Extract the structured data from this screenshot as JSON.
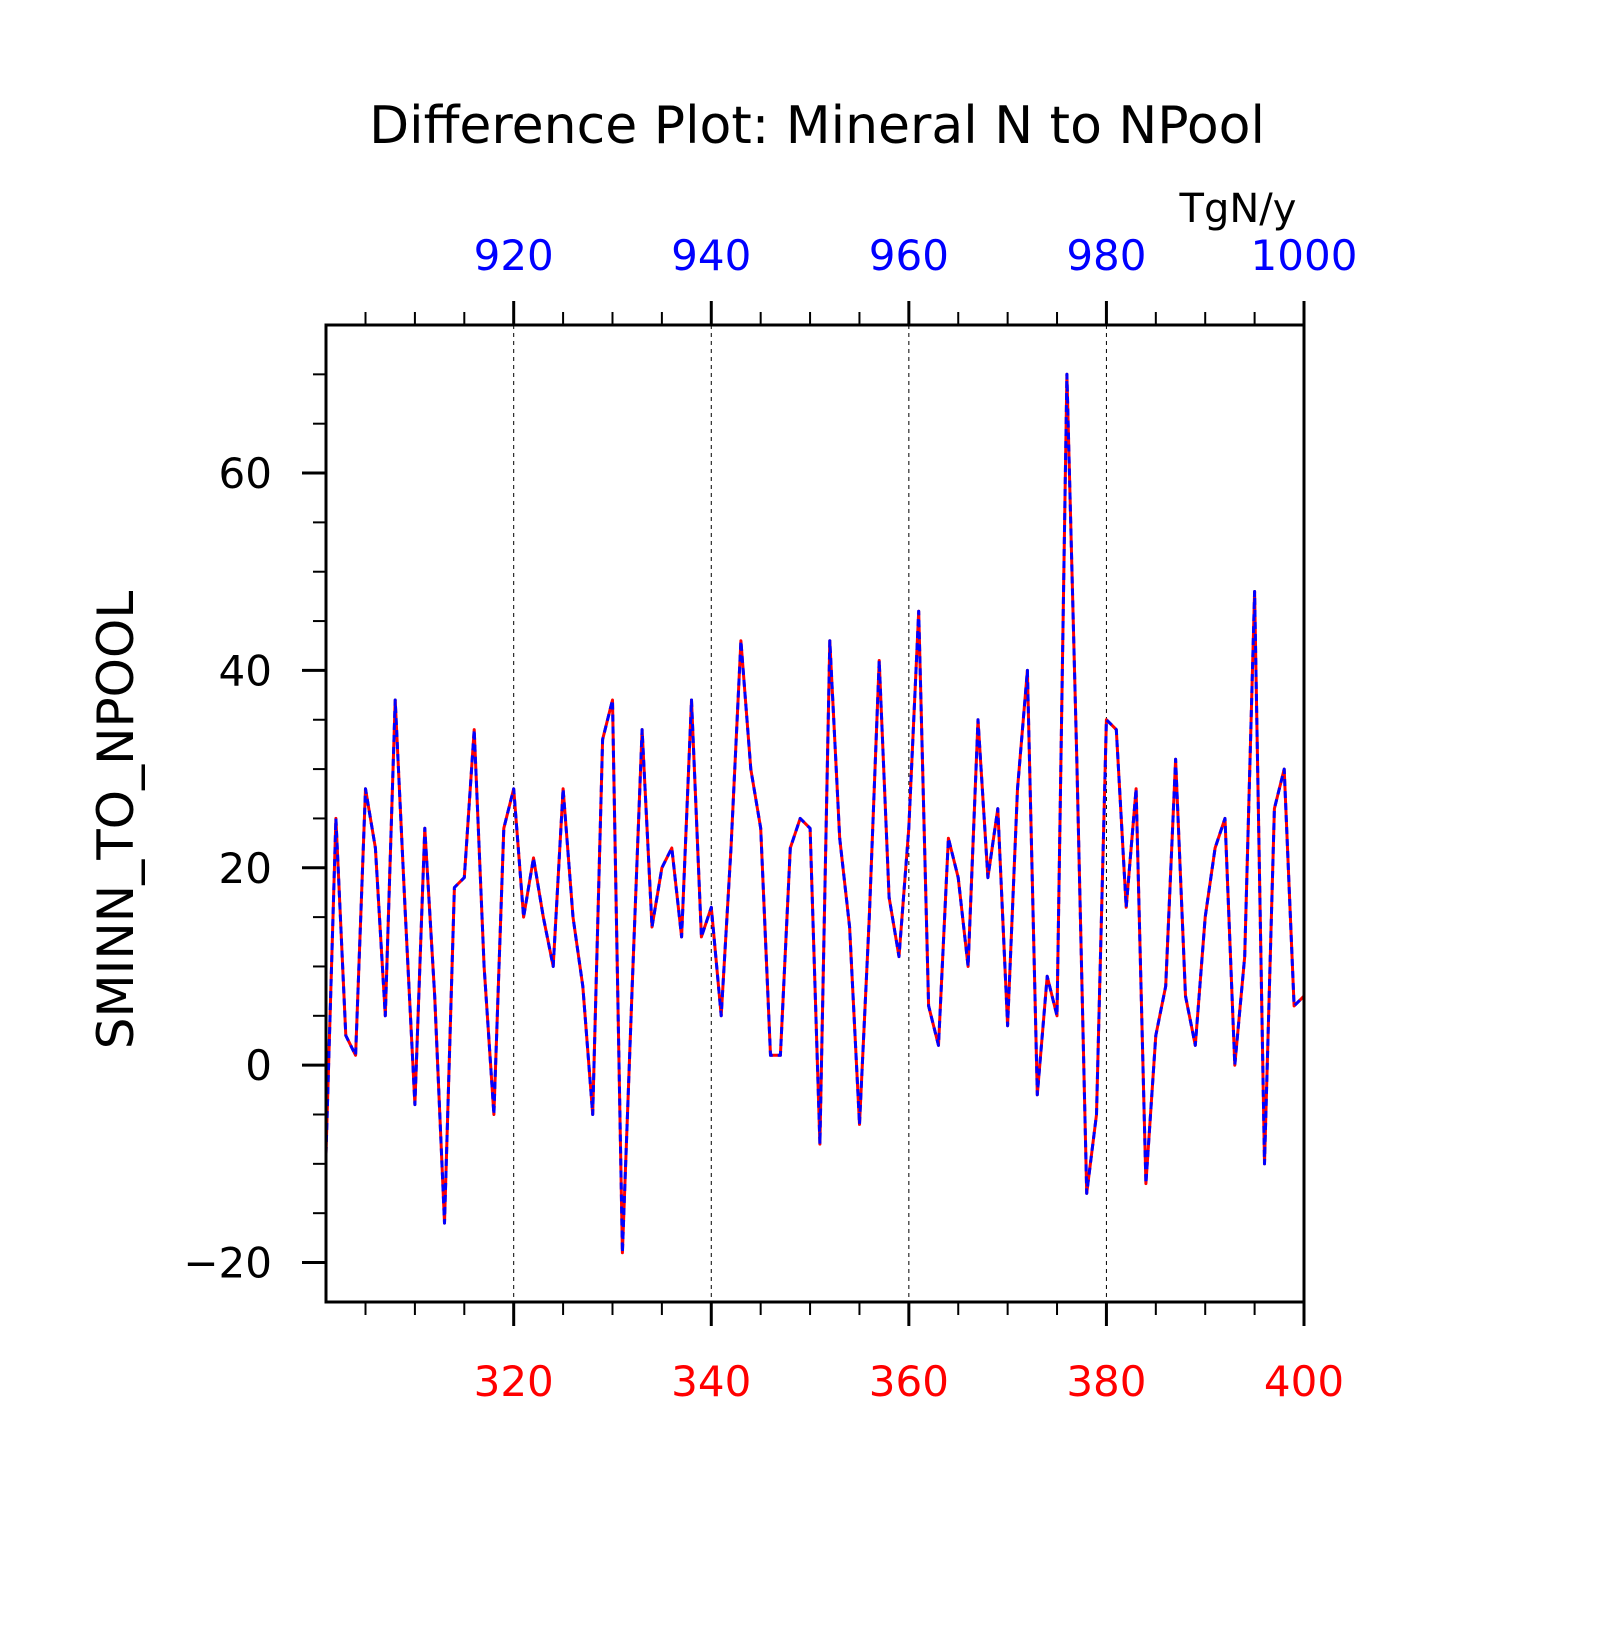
{
  "chart_data": {
    "type": "line",
    "title": "Difference Plot: Mineral N to NPool",
    "units": "TgN/y",
    "ylabel": "SMINN_TO_NPOOL",
    "xlim_bottom": [
      301,
      400
    ],
    "xlim_top": [
      901,
      1000
    ],
    "ylim": [
      -24,
      75
    ],
    "x_ticks_bottom": [
      "320",
      "340",
      "360",
      "380",
      "400"
    ],
    "x_ticks_top": [
      "920",
      "940",
      "960",
      "980",
      "1000"
    ],
    "y_ticks": [
      "-20",
      "0",
      "20",
      "40",
      "60"
    ],
    "grid": "vertical dashed at labeled x ticks",
    "colors": {
      "bottom_axis": "#ff0000",
      "top_axis": "#0000ff",
      "series_a": "#ff0000",
      "series_b": "#0000ff"
    },
    "series": [
      {
        "name": "",
        "line": "solid",
        "color": "#ff0000",
        "axis": "bottom"
      },
      {
        "name": "",
        "line": "dashed",
        "color": "#0000ff",
        "axis": "top"
      }
    ],
    "x": [
      301,
      302,
      303,
      304,
      305,
      306,
      307,
      308,
      309,
      310,
      311,
      312,
      313,
      314,
      315,
      316,
      317,
      318,
      319,
      320,
      321,
      322,
      323,
      324,
      325,
      326,
      327,
      328,
      329,
      330,
      331,
      332,
      333,
      334,
      335,
      336,
      337,
      338,
      339,
      340,
      341,
      342,
      343,
      344,
      345,
      346,
      347,
      348,
      349,
      350,
      351,
      352,
      353,
      354,
      355,
      356,
      357,
      358,
      359,
      360,
      361,
      362,
      363,
      364,
      365,
      366,
      367,
      368,
      369,
      370,
      371,
      372,
      373,
      374,
      375,
      376,
      377,
      378,
      379,
      380,
      381,
      382,
      383,
      384,
      385,
      386,
      387,
      388,
      389,
      390,
      391,
      392,
      393,
      394,
      395,
      396,
      397,
      398,
      399,
      400
    ],
    "values": [
      -9,
      25,
      3,
      1,
      28,
      22,
      5,
      37,
      16,
      -4,
      24,
      7,
      -16,
      18,
      19,
      34,
      10,
      -5,
      24,
      28,
      15,
      21,
      15,
      10,
      28,
      15,
      8,
      -5,
      33,
      37,
      -19,
      8,
      34,
      14,
      20,
      22,
      13,
      37,
      13,
      16,
      5,
      22,
      43,
      30,
      24,
      1,
      1,
      22,
      25,
      24,
      -8,
      43,
      23,
      14,
      -6,
      15,
      41,
      17,
      11,
      24,
      46,
      6,
      2,
      23,
      19,
      10,
      35,
      19,
      26,
      4,
      28,
      40,
      -3,
      9,
      5,
      70,
      31,
      -13,
      -5,
      35,
      34,
      16,
      28,
      -12,
      3,
      8,
      31,
      7,
      2,
      15,
      22,
      25,
      0,
      11,
      48,
      -10,
      26,
      30,
      6,
      7
    ]
  }
}
